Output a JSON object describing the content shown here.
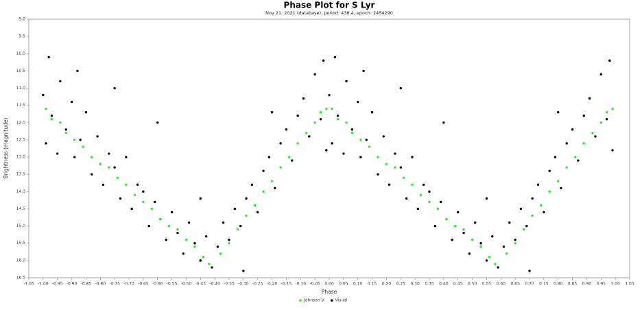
{
  "chart_data": {
    "type": "scatter",
    "title": "Phase Plot for S Lyr",
    "subtitle": "Nov 21, 2021 (database), period: 438.4, epoch: 2454290",
    "x_label": "Phase",
    "y_label": "Brightness (magnitude)",
    "xlim": [
      -1.05,
      1.05
    ],
    "ylim": [
      9,
      16.5
    ],
    "y_inverted": true,
    "legend": "bottom",
    "xticks": [
      -1.05,
      {
        "value": -1,
        "label": "-1.00"
      },
      -0.95,
      {
        "value": -0.9,
        "label": "-0.90"
      },
      -0.85,
      {
        "value": -0.8,
        "label": "-0.80"
      },
      -0.75,
      {
        "value": -0.7,
        "label": "-0.70"
      },
      -0.65,
      {
        "value": -0.6,
        "label": "-0.60"
      },
      -0.55,
      {
        "value": -0.5,
        "label": "-0.50"
      },
      -0.45,
      {
        "value": -0.4,
        "label": "-0.40"
      },
      -0.35,
      {
        "value": -0.3,
        "label": "-0.30"
      },
      -0.25,
      {
        "value": -0.2,
        "label": "-0.20"
      },
      -0.15,
      {
        "value": -0.1,
        "label": "-0.10"
      },
      -0.05,
      {
        "value": 0,
        "label": "0.00"
      },
      0.05,
      {
        "value": 0.1,
        "label": "0.10"
      },
      0.15,
      {
        "value": 0.2,
        "label": "0.20"
      },
      0.25,
      {
        "value": 0.3,
        "label": "0.30"
      },
      0.35,
      {
        "value": 0.4,
        "label": "0.40"
      },
      0.45,
      {
        "value": 0.5,
        "label": "0.50"
      },
      0.55,
      {
        "value": 0.6,
        "label": "0.60"
      },
      0.65,
      {
        "value": 0.7,
        "label": "0.70"
      },
      0.75,
      {
        "value": 0.8,
        "label": "0.80"
      },
      0.85,
      {
        "value": 0.9,
        "label": "0.90"
      },
      0.95,
      {
        "value": 1,
        "label": "1.00"
      },
      1.05
    ],
    "yticks": [
      {
        "value": 9,
        "label": "9.0"
      },
      9.5,
      {
        "value": 10,
        "label": "10.0"
      },
      10.5,
      {
        "value": 11,
        "label": "11.0"
      },
      11.5,
      {
        "value": 12,
        "label": "12.0"
      },
      12.5,
      {
        "value": 13,
        "label": "13.0"
      },
      13.5,
      {
        "value": 14,
        "label": "14.0"
      },
      14.5,
      {
        "value": 15,
        "label": "15.0"
      },
      15.5,
      {
        "value": 16,
        "label": "16.0"
      },
      16.5
    ],
    "series": [
      {
        "name": "Johnson V",
        "color": "#22ee22",
        "x": [
          -0.99,
          -0.97,
          -0.94,
          -0.92,
          -0.89,
          -0.86,
          -0.83,
          -0.8,
          -0.77,
          -0.74,
          -0.71,
          -0.68,
          -0.65,
          -0.62,
          -0.59,
          -0.56,
          -0.53,
          -0.5,
          -0.47,
          -0.44,
          -0.42,
          -0.38,
          -0.35,
          -0.32,
          -0.29,
          -0.26,
          -0.23,
          -0.2,
          -0.17,
          -0.14,
          -0.11,
          -0.08,
          -0.05,
          -0.03,
          -0.01,
          0.01,
          0.03,
          0.06,
          0.08,
          0.11,
          0.14,
          0.17,
          0.2,
          0.23,
          0.26,
          0.29,
          0.32,
          0.35,
          0.38,
          0.41,
          0.44,
          0.47,
          0.5,
          0.53,
          0.56,
          0.58,
          0.62,
          0.65,
          0.68,
          0.71,
          0.74,
          0.77,
          0.8,
          0.83,
          0.86,
          0.89,
          0.92,
          0.95,
          0.97,
          0.99
        ],
        "values": [
          11.6,
          11.9,
          12.0,
          12.3,
          12.5,
          12.7,
          13.0,
          13.2,
          13.3,
          13.6,
          13.8,
          14.1,
          14.3,
          14.5,
          14.8,
          15.0,
          15.1,
          15.4,
          15.6,
          15.9,
          16.1,
          15.8,
          15.5,
          15.1,
          14.7,
          14.4,
          14.0,
          13.7,
          13.3,
          13.0,
          12.6,
          12.3,
          12.0,
          11.7,
          11.6,
          11.6,
          11.9,
          12.0,
          12.3,
          12.5,
          12.7,
          13.0,
          13.2,
          13.3,
          13.6,
          13.8,
          14.1,
          14.3,
          14.5,
          14.8,
          15.0,
          15.1,
          15.4,
          15.6,
          15.9,
          16.1,
          15.8,
          15.5,
          15.1,
          14.7,
          14.4,
          14.0,
          13.7,
          13.3,
          13.0,
          12.6,
          12.3,
          12.0,
          11.7,
          11.6
        ]
      },
      {
        "name": "Visual",
        "color": "#000000",
        "x": [
          -1.0,
          -0.99,
          -0.98,
          -0.97,
          -0.95,
          -0.94,
          -0.92,
          -0.9,
          -0.89,
          -0.87,
          -0.85,
          -0.83,
          -0.81,
          -0.79,
          -0.77,
          -0.75,
          -0.73,
          -0.71,
          -0.69,
          -0.67,
          -0.65,
          -0.63,
          -0.61,
          -0.59,
          -0.57,
          -0.55,
          -0.53,
          -0.51,
          -0.49,
          -0.47,
          -0.45,
          -0.43,
          -0.41,
          -0.39,
          -0.37,
          -0.35,
          -0.33,
          -0.31,
          -0.29,
          -0.27,
          -0.25,
          -0.23,
          -0.21,
          -0.19,
          -0.17,
          -0.15,
          -0.13,
          -0.11,
          -0.09,
          -0.07,
          -0.05,
          -0.03,
          -0.02,
          -0.01,
          -0.75,
          -0.6,
          -0.2,
          -0.88,
          -0.45,
          -0.3,
          0.0,
          0.01,
          0.02,
          0.03,
          0.05,
          0.06,
          0.08,
          0.1,
          0.11,
          0.13,
          0.15,
          0.17,
          0.19,
          0.21,
          0.23,
          0.25,
          0.27,
          0.29,
          0.31,
          0.33,
          0.35,
          0.37,
          0.39,
          0.41,
          0.43,
          0.45,
          0.47,
          0.49,
          0.51,
          0.53,
          0.55,
          0.57,
          0.59,
          0.61,
          0.63,
          0.65,
          0.67,
          0.69,
          0.71,
          0.73,
          0.75,
          0.77,
          0.79,
          0.81,
          0.83,
          0.85,
          0.87,
          0.89,
          0.91,
          0.93,
          0.95,
          0.97,
          0.98,
          0.99,
          0.25,
          0.4,
          0.8,
          0.12,
          0.55,
          0.7
        ],
        "values": [
          11.2,
          12.6,
          10.1,
          11.8,
          12.9,
          10.8,
          12.2,
          11.4,
          13.0,
          12.5,
          11.7,
          13.5,
          12.4,
          13.8,
          12.9,
          13.3,
          14.2,
          13.0,
          14.5,
          13.8,
          14.0,
          15.0,
          14.3,
          14.8,
          15.4,
          14.6,
          15.2,
          15.8,
          14.9,
          15.5,
          16.0,
          15.3,
          16.2,
          15.6,
          14.9,
          15.4,
          14.5,
          15.0,
          14.2,
          13.8,
          14.6,
          13.4,
          13.0,
          13.9,
          12.6,
          12.2,
          13.1,
          11.8,
          11.3,
          12.4,
          10.6,
          11.9,
          10.2,
          12.8,
          11.0,
          12.0,
          11.7,
          10.5,
          14.2,
          16.3,
          11.2,
          12.6,
          10.1,
          11.8,
          12.9,
          10.8,
          12.2,
          11.4,
          13.0,
          12.5,
          11.7,
          13.5,
          12.4,
          13.8,
          12.9,
          13.3,
          14.2,
          13.0,
          14.5,
          13.8,
          14.0,
          15.0,
          14.3,
          14.8,
          15.4,
          14.6,
          15.2,
          15.8,
          14.9,
          15.5,
          16.0,
          15.3,
          16.2,
          15.6,
          14.9,
          15.4,
          14.5,
          15.0,
          14.2,
          13.8,
          14.6,
          13.4,
          13.0,
          13.9,
          12.6,
          12.2,
          13.1,
          11.8,
          11.3,
          12.4,
          10.6,
          11.9,
          10.2,
          12.8,
          11.0,
          12.0,
          11.7,
          10.5,
          14.2,
          16.3
        ]
      }
    ]
  }
}
